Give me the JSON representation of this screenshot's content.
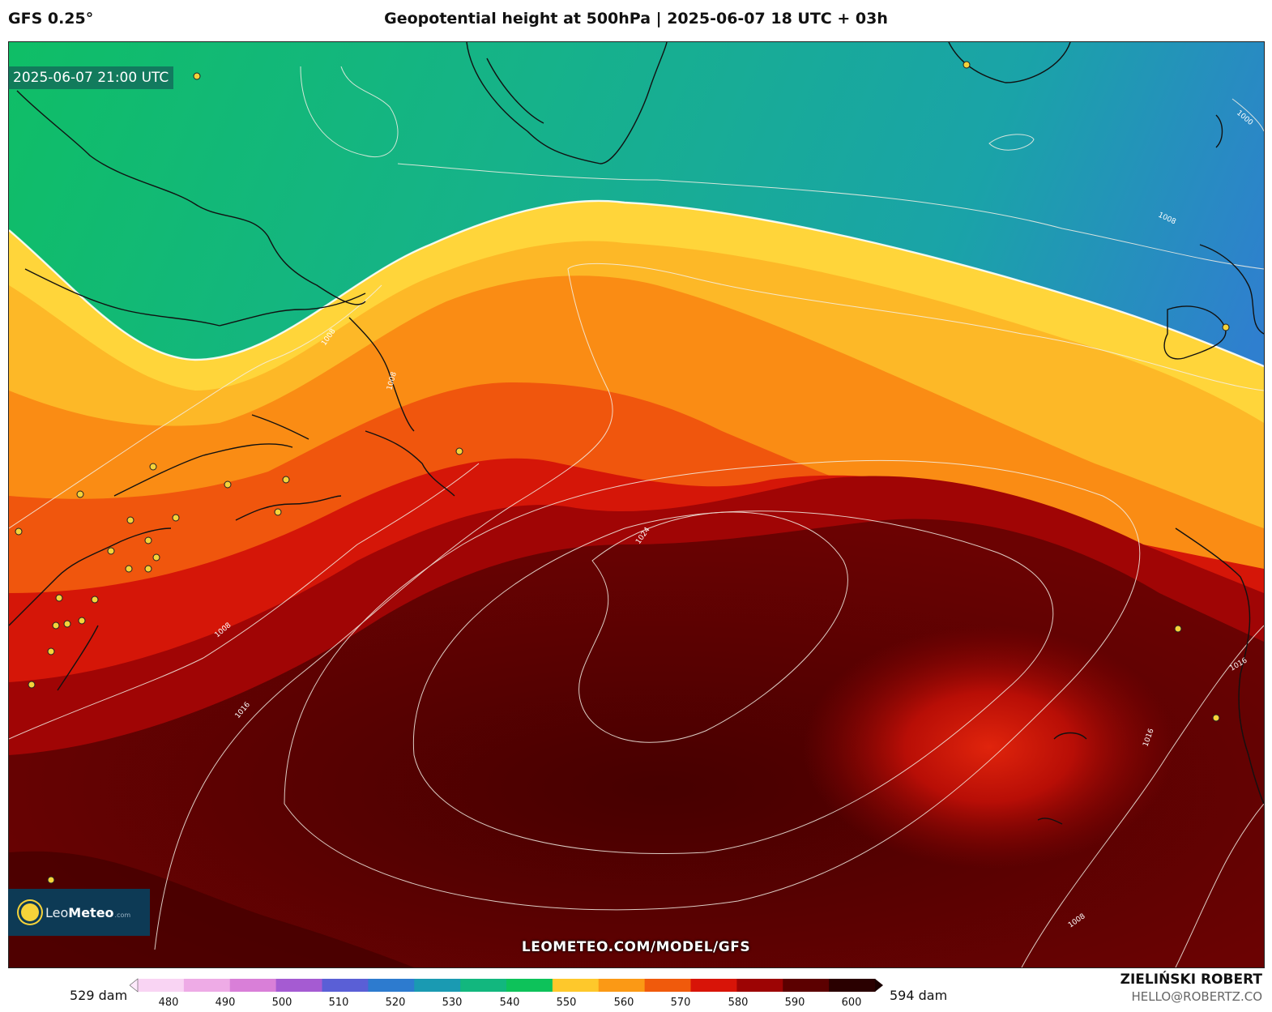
{
  "header": {
    "model": "GFS 0.25°",
    "title": "Geopotential height at 500hPa | 2025-06-07 18 UTC + 03h"
  },
  "map": {
    "valid_time": "2025-06-07 21:00 UTC",
    "watermark": "LEOMETEO.COM/MODEL/GFS",
    "isobar_labels": [
      "1000",
      "1008",
      "1008",
      "1008",
      "1008",
      "1016",
      "1016",
      "1016",
      "1024"
    ]
  },
  "logo": {
    "name_light": "Leo",
    "name_bold": "Meteo",
    "domain": ".com"
  },
  "legend": {
    "min_label": "529 dam",
    "max_label": "594 dam",
    "ticks": [
      "480",
      "490",
      "500",
      "510",
      "520",
      "530",
      "540",
      "550",
      "560",
      "570",
      "580",
      "590",
      "600"
    ],
    "colors": [
      "#f9d4f3",
      "#eeabe6",
      "#d97fd8",
      "#a55bd2",
      "#5a5fd6",
      "#2d7bcf",
      "#1a9ab2",
      "#12b77e",
      "#0dc25a",
      "#fec82b",
      "#fb9915",
      "#f05a0c",
      "#d81408",
      "#9d0404",
      "#5c0000",
      "#2a0000"
    ]
  },
  "credits": {
    "author": "ZIELIŃSKI ROBERT",
    "email": "HELLO@ROBERTZ.CO"
  }
}
